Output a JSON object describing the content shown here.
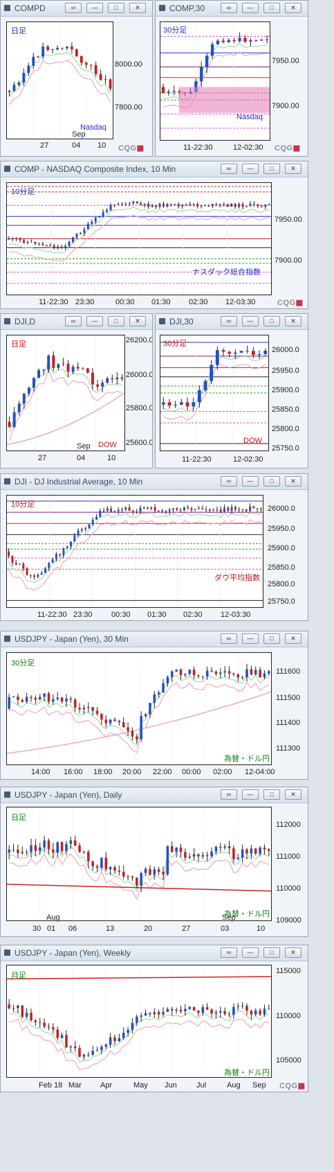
{
  "colors": {
    "up": "#2050c8",
    "down": "#c81e1e",
    "wick": "#222222",
    "ma_short": "#a8d8a8",
    "ma_long": "#f0a8c0",
    "accent_box": "#e878b8"
  },
  "logo": {
    "text": "CQG",
    "mark": "░"
  },
  "windows": [
    {
      "key": "compd",
      "title": "COMPD",
      "period_label": "日足",
      "period_color": "#2030c0",
      "name_label": "Nasdaq",
      "name_color": "#2030c0",
      "yticks": [
        "8000.00",
        "7800.00"
      ],
      "xticks": [
        "27",
        "04",
        "10"
      ],
      "month_label": "Sep"
    },
    {
      "key": "comp30",
      "title": "COMP,30",
      "period_label": "30分足",
      "period_color": "#2030c0",
      "name_label": "Nasdaq",
      "name_color": "#2030c0",
      "yticks": [
        "7950.00",
        "7900.00"
      ],
      "xticks": [
        "11-22:30",
        "12-02:30"
      ]
    },
    {
      "key": "comp10",
      "title": "COMP - NASDAQ Composite Index, 10 Min",
      "period_label": "10分足",
      "period_color": "#2030c0",
      "name_label": "ナスダック総合指数",
      "name_color": "#2030c0",
      "yticks": [
        "7950.00",
        "7900.00"
      ],
      "xticks": [
        "11-22:30",
        "23:30",
        "00:30",
        "01:30",
        "02:30",
        "12-03:30"
      ]
    },
    {
      "key": "djid",
      "title": "DJI,D",
      "period_label": "日足",
      "period_color": "#d01010",
      "name_label": "DOW",
      "name_color": "#d01010",
      "yticks": [
        "26200.0",
        "26000.0",
        "25800.0",
        "25600.0"
      ],
      "xticks": [
        "27",
        "04",
        "10"
      ],
      "month_label": "Sep"
    },
    {
      "key": "dji30",
      "title": "DJI,30",
      "period_label": "30分足",
      "period_color": "#d01010",
      "name_label": "DOW",
      "name_color": "#d01010",
      "yticks": [
        "26000.0",
        "25950.0",
        "25900.0",
        "25850.0",
        "25800.0",
        "25750.0"
      ],
      "xticks": [
        "11-22:30",
        "12-02:30"
      ]
    },
    {
      "key": "dji10",
      "title": "DJI - DJ Industrial Average, 10 Min",
      "period_label": "10分足",
      "period_color": "#d01010",
      "name_label": "ダウ平均指数",
      "name_color": "#d01010",
      "yticks": [
        "26000.0",
        "25950.0",
        "25900.0",
        "25850.0",
        "25800.0",
        "25750.0"
      ],
      "xticks": [
        "11-22:30",
        "23:30",
        "00:30",
        "01:30",
        "02:30",
        "12-03:30"
      ]
    },
    {
      "key": "usd30",
      "title": "USDJPY - Japan (Yen), 30 Min",
      "period_label": "30分足",
      "period_color": "#108010",
      "name_label": "為替・ドル円",
      "name_color": "#108010",
      "yticks": [
        "111600",
        "111500",
        "111400",
        "111300"
      ],
      "xticks": [
        "14:00",
        "16:00",
        "18:00",
        "20:00",
        "22:00",
        "00:00",
        "02:00",
        "12-04:00"
      ]
    },
    {
      "key": "usdd",
      "title": "USDJPY - Japan (Yen), Daily",
      "period_label": "日足",
      "period_color": "#108010",
      "name_label": "為替・ドル円",
      "name_color": "#108010",
      "yticks": [
        "112000",
        "111000",
        "110000",
        "109000"
      ],
      "xticks": [
        "30",
        "01",
        "06",
        "13",
        "20",
        "27",
        "03",
        "10"
      ],
      "month_labels": [
        "Aug",
        "Sep"
      ]
    },
    {
      "key": "usdw",
      "title": "USDJPY - Japan (Yen), Weekly",
      "period_label": "月足",
      "period_color": "#108010",
      "name_label": "為替・ドル円",
      "name_color": "#108010",
      "yticks": [
        "115000",
        "110000",
        "105000"
      ],
      "xticks": [
        "Feb 18",
        "Mar",
        "Apr",
        "May",
        "Jun",
        "Jul",
        "Aug",
        "Sep"
      ]
    }
  ]
}
